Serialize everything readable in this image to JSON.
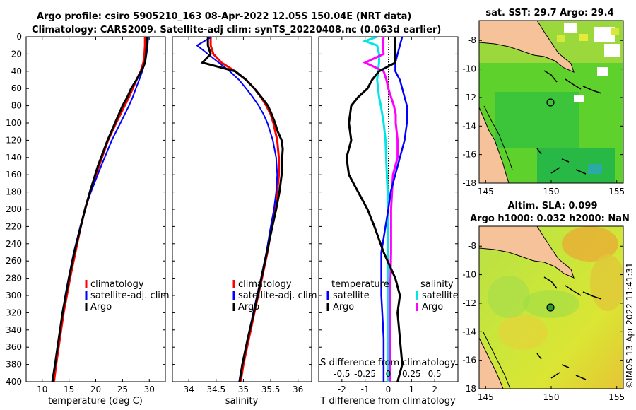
{
  "title": {
    "line1": "Argo profile: csiro 5905210_163 08-Apr-2022 12.05S 150.04E (NRT data)",
    "line2": "Climatology: CARS2009. Satellite-adj clim: synTS_20220408.nc (0.063d earlier)"
  },
  "colors": {
    "climatology": "#ff0000",
    "satellite": "#0000ff",
    "argo": "#000000",
    "sal_satellite": "#00e5e5",
    "sal_argo": "#ff00ff",
    "land": "#f5c29a"
  },
  "depth_ticks": [
    "0",
    "20",
    "40",
    "60",
    "80",
    "100",
    "120",
    "140",
    "160",
    "180",
    "200",
    "220",
    "240",
    "260",
    "280",
    "300",
    "320",
    "340",
    "360",
    "380",
    "400"
  ],
  "temp_panel": {
    "xlabel": "temperature (deg C)",
    "xticks": [
      "10",
      "15",
      "20",
      "25",
      "30"
    ],
    "legend": [
      "climatology",
      "satellite-adj. clim",
      "Argo"
    ]
  },
  "sal_panel": {
    "xlabel": "salinity",
    "xticks": [
      "34",
      "34.5",
      "35",
      "35.5",
      "36"
    ],
    "legend": [
      "climatology",
      "satellite-adj. clim",
      "Argo"
    ]
  },
  "diff_panel": {
    "xlabel": "T difference from climatology",
    "xticks": [
      "-2",
      "-1",
      "0",
      "1",
      "2"
    ],
    "top_label": "S difference from climatology",
    "top_ticks": [
      "-0.5",
      "-0.25",
      "0",
      "0.25",
      "0.5"
    ],
    "legend_temperature": {
      "title": "temperature",
      "items": [
        "satellite",
        "Argo"
      ]
    },
    "legend_salinity": {
      "title": "salinity",
      "items": [
        "satellite",
        "Argo"
      ]
    }
  },
  "sst_map": {
    "title": "sat. SST: 29.7 Argo: 29.4",
    "xticks": [
      "145",
      "150",
      "155"
    ],
    "yticks": [
      "-8",
      "-10",
      "-12",
      "-14",
      "-16",
      "-18"
    ]
  },
  "sla_map": {
    "title1": "Altim. SLA: 0.099",
    "title2": "Argo h1000: 0.032 h2000: NaN",
    "xticks": [
      "145",
      "150",
      "155"
    ],
    "yticks": [
      "-8",
      "-10",
      "-12",
      "-14",
      "-16",
      "-18"
    ]
  },
  "credit": "©IMOS 13-Apr-2022 11:41:31",
  "chart_data": [
    {
      "type": "line",
      "title": "",
      "xlabel": "temperature (deg C)",
      "ylabel": "depth",
      "xlim": [
        7,
        33
      ],
      "ylim": [
        400,
        0
      ],
      "series": [
        {
          "name": "climatology",
          "depth": [
            0,
            10,
            20,
            30,
            40,
            50,
            60,
            70,
            80,
            100,
            120,
            150,
            180,
            200,
            220,
            250,
            280,
            300,
            320,
            350,
            380,
            400
          ],
          "values": [
            29.2,
            29.2,
            29.1,
            28.9,
            28.4,
            27.6,
            26.9,
            26.2,
            25.4,
            23.8,
            22.3,
            20.6,
            19.0,
            18.0,
            17.2,
            16.2,
            15.2,
            14.6,
            14.0,
            13.3,
            12.6,
            12.2
          ]
        },
        {
          "name": "satellite-adj. clim",
          "depth": [
            0,
            10,
            20,
            30,
            40,
            50,
            60,
            70,
            80,
            100,
            120,
            150,
            180,
            200,
            220,
            250,
            280,
            300,
            320,
            350,
            380,
            400
          ],
          "values": [
            29.8,
            29.7,
            29.5,
            29.2,
            28.7,
            28.1,
            27.5,
            26.9,
            26.2,
            24.6,
            23.0,
            21.0,
            19.1,
            18.0,
            17.1,
            15.9,
            14.9,
            14.3,
            13.8,
            13.1,
            12.4,
            12.0
          ]
        },
        {
          "name": "Argo",
          "depth": [
            0,
            10,
            20,
            30,
            40,
            50,
            60,
            70,
            80,
            100,
            120,
            150,
            180,
            200,
            220,
            250,
            280,
            300,
            320,
            350,
            380,
            400
          ],
          "values": [
            29.5,
            29.5,
            29.4,
            29.2,
            28.5,
            27.6,
            26.6,
            25.9,
            25.0,
            23.6,
            22.2,
            20.4,
            18.9,
            18.0,
            17.2,
            16.0,
            15.0,
            14.4,
            13.8,
            13.1,
            12.4,
            11.9
          ]
        }
      ]
    },
    {
      "type": "line",
      "title": "",
      "xlabel": "salinity",
      "ylabel": "depth",
      "xlim": [
        33.7,
        36.25
      ],
      "ylim": [
        400,
        0
      ],
      "series": [
        {
          "name": "climatology",
          "depth": [
            0,
            10,
            20,
            30,
            40,
            50,
            60,
            70,
            80,
            90,
            100,
            120,
            140,
            160,
            180,
            200,
            220,
            250,
            280,
            300,
            320,
            350,
            380,
            400
          ],
          "values": [
            34.4,
            34.4,
            34.45,
            34.6,
            34.85,
            35.05,
            35.2,
            35.32,
            35.42,
            35.5,
            35.55,
            35.62,
            35.65,
            35.65,
            35.62,
            35.58,
            35.52,
            35.44,
            35.34,
            35.27,
            35.2,
            35.1,
            35.0,
            34.95
          ]
        },
        {
          "name": "satellite-adj. clim",
          "depth": [
            0,
            10,
            20,
            30,
            40,
            50,
            60,
            70,
            80,
            90,
            100,
            120,
            140,
            160,
            180,
            200,
            220,
            250,
            280,
            300,
            320,
            350,
            380,
            400
          ],
          "values": [
            34.42,
            34.15,
            34.35,
            34.55,
            34.75,
            34.92,
            35.05,
            35.17,
            35.28,
            35.37,
            35.44,
            35.54,
            35.6,
            35.62,
            35.6,
            35.56,
            35.5,
            35.42,
            35.32,
            35.25,
            35.18,
            35.08,
            34.98,
            34.92
          ]
        },
        {
          "name": "Argo",
          "depth": [
            0,
            10,
            20,
            30,
            40,
            50,
            60,
            70,
            80,
            90,
            100,
            110,
            120,
            130,
            140,
            160,
            180,
            200,
            220,
            250,
            280,
            300,
            320,
            350,
            380,
            400
          ],
          "values": [
            34.35,
            34.35,
            34.4,
            34.25,
            34.85,
            35.05,
            35.2,
            35.33,
            35.45,
            35.52,
            35.58,
            35.63,
            35.7,
            35.72,
            35.71,
            35.7,
            35.66,
            35.6,
            35.53,
            35.43,
            35.33,
            35.26,
            35.19,
            35.08,
            34.98,
            34.93
          ]
        }
      ]
    },
    {
      "type": "line",
      "title": "",
      "xlabel": "T difference from climatology",
      "top_xlabel": "S difference from climatology",
      "ylabel": "depth",
      "xlim": [
        -3,
        3
      ],
      "top_xlim": [
        -0.75,
        0.75
      ],
      "ylim": [
        400,
        0
      ],
      "series": [
        {
          "name": "temperature satellite",
          "depth": [
            0,
            10,
            20,
            30,
            40,
            50,
            60,
            70,
            80,
            100,
            120,
            150,
            180,
            200,
            250,
            300,
            350,
            400
          ],
          "values": [
            0.6,
            0.5,
            0.4,
            0.3,
            0.3,
            0.5,
            0.6,
            0.7,
            0.8,
            0.8,
            0.7,
            0.4,
            0.1,
            0.0,
            -0.3,
            -0.3,
            -0.2,
            -0.2
          ]
        },
        {
          "name": "temperature Argo",
          "depth": [
            0,
            10,
            20,
            30,
            40,
            50,
            60,
            70,
            80,
            100,
            120,
            140,
            160,
            180,
            200,
            220,
            250,
            280,
            300,
            320,
            350,
            380,
            400
          ],
          "values": [
            0.3,
            0.3,
            0.3,
            0.3,
            -0.4,
            -0.7,
            -0.9,
            -1.3,
            -1.6,
            -1.7,
            -1.6,
            -1.8,
            -1.7,
            -1.3,
            -0.9,
            -0.6,
            -0.2,
            0.3,
            0.5,
            0.4,
            0.5,
            0.6,
            0.4
          ]
        },
        {
          "name": "salinity satellite",
          "depth": [
            0,
            5,
            10,
            20,
            30,
            50,
            70,
            80,
            100,
            120,
            150,
            200,
            250,
            300,
            350,
            400
          ],
          "values": [
            -0.12,
            -0.25,
            -0.12,
            -0.1,
            -0.1,
            -0.12,
            -0.1,
            -0.08,
            -0.05,
            -0.03,
            -0.02,
            0.0,
            0.0,
            0.0,
            0.0,
            0.0
          ]
        },
        {
          "name": "salinity Argo",
          "depth": [
            0,
            10,
            20,
            30,
            40,
            50,
            60,
            70,
            80,
            90,
            100,
            120,
            140,
            160,
            200,
            250,
            300,
            350,
            400
          ],
          "values": [
            -0.05,
            -0.06,
            -0.05,
            -0.25,
            -0.05,
            -0.02,
            0.0,
            0.03,
            0.06,
            0.08,
            0.08,
            0.1,
            0.1,
            0.05,
            0.03,
            0.03,
            0.02,
            0.02,
            0.02
          ]
        }
      ]
    },
    {
      "type": "heatmap",
      "title": "sat. SST: 29.7 Argo: 29.4",
      "xlim": [
        144.5,
        155.5
      ],
      "ylim": [
        -18,
        -6.6
      ],
      "argo_position": {
        "lon": 150.04,
        "lat": -12.05
      }
    },
    {
      "type": "heatmap",
      "title": "Altim. SLA: 0.099 / Argo h1000: 0.032 h2000: NaN",
      "xlim": [
        144.5,
        155.5
      ],
      "ylim": [
        -18,
        -6.6
      ],
      "argo_position": {
        "lon": 150.04,
        "lat": -12.05
      }
    }
  ]
}
